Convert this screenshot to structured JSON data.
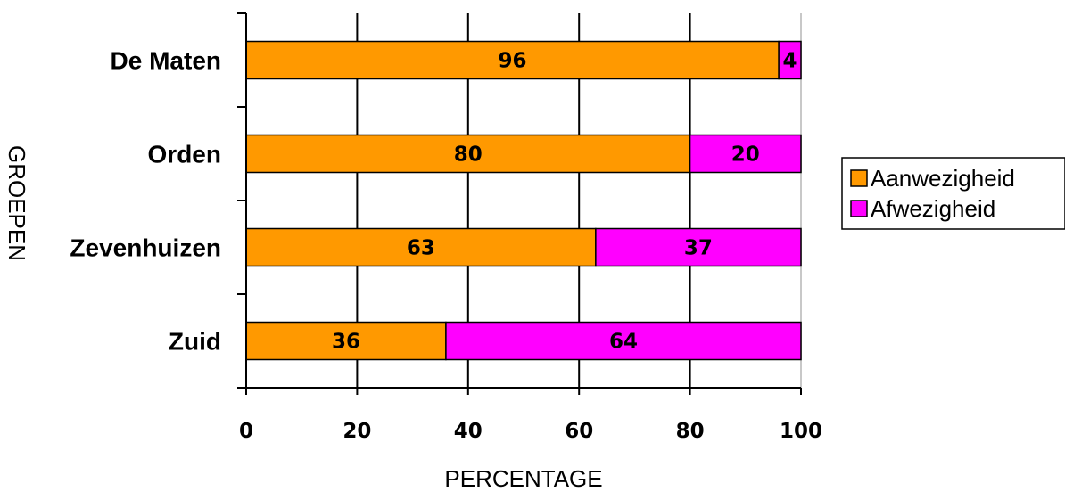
{
  "chart_data": {
    "type": "bar",
    "orientation": "horizontal",
    "stacked": true,
    "categories": [
      "De Maten",
      "Orden",
      "Zevenhuizen",
      "Zuid"
    ],
    "series": [
      {
        "name": "Aanwezigheid",
        "values": [
          96,
          80,
          63,
          36
        ],
        "color": "#FF9900"
      },
      {
        "name": "Afwezigheid",
        "values": [
          4,
          20,
          37,
          64
        ],
        "color": "#FF00FF"
      }
    ],
    "xlabel": "PERCENTAGE",
    "ylabel": "GROEPEN",
    "xlim": [
      0,
      100
    ],
    "xticks": [
      "0",
      "20",
      "40",
      "60",
      "80",
      "100"
    ],
    "grid": "vertical",
    "legend": "right"
  }
}
